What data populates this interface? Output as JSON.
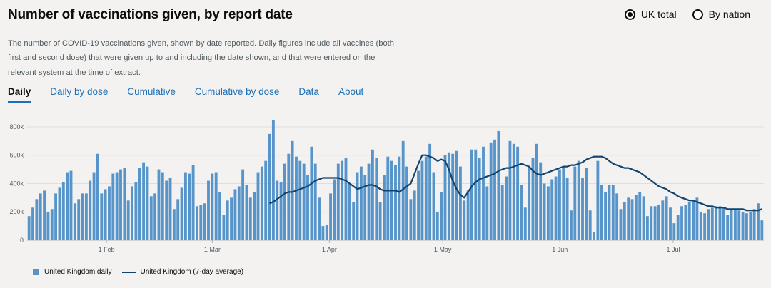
{
  "header": {
    "title": "Number of vaccinations given, by report date"
  },
  "radios": [
    {
      "label": "UK total",
      "checked": true
    },
    {
      "label": "By nation",
      "checked": false
    }
  ],
  "description": "The number of COVID-19 vaccinations given, shown by date reported. Daily figures include all vaccines (both first and second dose) that were given up to and including the date shown, and that were entered on the relevant system at the time of extract.",
  "tabs": [
    {
      "label": "Daily",
      "active": true
    },
    {
      "label": "Daily by dose",
      "active": false
    },
    {
      "label": "Cumulative",
      "active": false
    },
    {
      "label": "Cumulative by dose",
      "active": false
    },
    {
      "label": "Data",
      "active": false
    },
    {
      "label": "About",
      "active": false
    }
  ],
  "legend": {
    "daily": "United Kingdom daily",
    "average": "United Kingdom (7-day average)"
  },
  "colors": {
    "bar": "#5694ca",
    "line": "#12436d",
    "link": "#1d70b8",
    "background": "#f3f2f1"
  },
  "chart_data": {
    "type": "bar",
    "x_start": "2021-01-11",
    "x_end": "2021-07-25",
    "x_ticks": [
      {
        "date": "2021-02-01",
        "label": "1 Feb"
      },
      {
        "date": "2021-03-01",
        "label": "1 Mar"
      },
      {
        "date": "2021-04-01",
        "label": "1 Apr"
      },
      {
        "date": "2021-05-01",
        "label": "1 May"
      },
      {
        "date": "2021-06-01",
        "label": "1 Jun"
      },
      {
        "date": "2021-07-01",
        "label": "1 Jul"
      }
    ],
    "y_ticks": [
      {
        "value": 0,
        "label": "0"
      },
      {
        "value": 200000,
        "label": "200k"
      },
      {
        "value": 400000,
        "label": "400k"
      },
      {
        "value": 600000,
        "label": "600k"
      },
      {
        "value": 800000,
        "label": "800k"
      }
    ],
    "ylim": [
      0,
      850000
    ],
    "grid": true,
    "legend_position": "bottom-left",
    "series": [
      {
        "name": "United Kingdom daily",
        "type": "bar",
        "values": [
          170000,
          230000,
          290000,
          330000,
          350000,
          200000,
          220000,
          330000,
          370000,
          410000,
          480000,
          490000,
          260000,
          290000,
          330000,
          330000,
          420000,
          480000,
          610000,
          330000,
          360000,
          380000,
          470000,
          480000,
          500000,
          510000,
          280000,
          380000,
          410000,
          510000,
          550000,
          520000,
          310000,
          330000,
          500000,
          480000,
          420000,
          440000,
          220000,
          290000,
          370000,
          480000,
          470000,
          530000,
          240000,
          250000,
          260000,
          420000,
          470000,
          480000,
          340000,
          180000,
          280000,
          300000,
          360000,
          380000,
          500000,
          390000,
          300000,
          340000,
          480000,
          520000,
          560000,
          750000,
          850000,
          420000,
          410000,
          540000,
          610000,
          700000,
          590000,
          560000,
          540000,
          460000,
          660000,
          540000,
          300000,
          100000,
          110000,
          330000,
          430000,
          540000,
          560000,
          580000,
          400000,
          270000,
          480000,
          520000,
          460000,
          540000,
          640000,
          580000,
          270000,
          460000,
          590000,
          560000,
          530000,
          590000,
          700000,
          520000,
          290000,
          350000,
          490000,
          560000,
          590000,
          680000,
          480000,
          200000,
          340000,
          600000,
          620000,
          610000,
          630000,
          520000,
          280000,
          350000,
          640000,
          640000,
          580000,
          660000,
          380000,
          690000,
          710000,
          770000,
          390000,
          450000,
          700000,
          680000,
          660000,
          390000,
          230000,
          520000,
          580000,
          680000,
          550000,
          400000,
          380000,
          430000,
          450000,
          500000,
          520000,
          440000,
          210000,
          520000,
          560000,
          440000,
          510000,
          210000,
          60000,
          560000,
          390000,
          340000,
          390000,
          390000,
          330000,
          220000,
          270000,
          300000,
          290000,
          320000,
          340000,
          310000,
          170000,
          240000,
          240000,
          250000,
          280000,
          310000,
          230000,
          120000,
          180000,
          240000,
          250000,
          270000,
          280000,
          300000,
          200000,
          190000,
          220000,
          230000,
          240000,
          240000,
          230000,
          180000,
          220000,
          220000,
          210000,
          200000,
          190000,
          200000,
          220000,
          260000,
          140000
        ]
      },
      {
        "name": "United Kingdom (7-day average)",
        "type": "line",
        "values": [
          260000,
          270000,
          290000,
          310000,
          330000,
          340000,
          340000,
          350000,
          360000,
          370000,
          380000,
          400000,
          420000,
          430000,
          440000,
          440000,
          440000,
          440000,
          440000,
          430000,
          420000,
          400000,
          380000,
          360000,
          370000,
          380000,
          390000,
          390000,
          380000,
          360000,
          350000,
          350000,
          350000,
          350000,
          340000,
          360000,
          380000,
          400000,
          470000,
          540000,
          600000,
          600000,
          590000,
          580000,
          560000,
          570000,
          560000,
          500000,
          420000,
          360000,
          320000,
          300000,
          340000,
          380000,
          410000,
          430000,
          440000,
          450000,
          460000,
          470000,
          490000,
          500000,
          510000,
          510000,
          520000,
          530000,
          540000,
          530000,
          520000,
          490000,
          470000,
          460000,
          470000,
          480000,
          490000,
          500000,
          510000,
          520000,
          520000,
          530000,
          530000,
          540000,
          550000,
          570000,
          580000,
          590000,
          590000,
          590000,
          580000,
          560000,
          540000,
          530000,
          520000,
          510000,
          510000,
          500000,
          490000,
          480000,
          460000,
          440000,
          420000,
          400000,
          380000,
          370000,
          360000,
          340000,
          330000,
          310000,
          300000,
          290000,
          280000,
          280000,
          270000,
          260000,
          250000,
          240000,
          240000,
          230000,
          230000,
          230000,
          220000,
          220000,
          220000,
          220000,
          220000,
          210000,
          210000,
          210000,
          210000,
          220000
        ]
      }
    ]
  }
}
